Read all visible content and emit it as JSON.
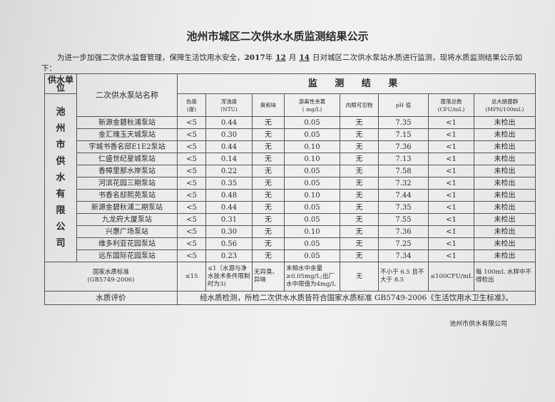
{
  "title": "池州市城区二次供水水质监测结果公示",
  "intro": {
    "before": "为进一步加强二次供水监督管理，保障生活饮用水安全，",
    "year": "2017",
    "year_unit": "年",
    "month": "12",
    "month_unit": "月",
    "day": "14",
    "after": "日对城区二次供水泵站水质进行监测，现将水质监测结果公示如下："
  },
  "table": {
    "unit_header": "供水单位",
    "name_header": "二次供水泵站名称",
    "results_header": "监 测 结 果",
    "columns": [
      "色度\n(度)",
      "浑浊度\n(NTU)",
      "臭和味",
      "游离性余氯\n( mg/L)",
      "肉眼可见物",
      "pH 值",
      "菌落总数\n(CFU/mL)",
      "总大肠菌群\n(MPN/100mL)"
    ],
    "unit": "池州市供水有限公司",
    "rows": [
      [
        "新源金碧秋浦泵站",
        "<5",
        "0.44",
        "无",
        "0.05",
        "无",
        "7.35",
        "<1",
        "未检出"
      ],
      [
        "金汇瑰玉天城泵站",
        "<5",
        "0.30",
        "无",
        "0.05",
        "无",
        "7.15",
        "<1",
        "未检出"
      ],
      [
        "宇城书香名邸E1E2泵站",
        "<5",
        "0.44",
        "无",
        "0.10",
        "无",
        "7.36",
        "<1",
        "未检出"
      ],
      [
        "仁盛世纪星城泵站",
        "<5",
        "0.14",
        "无",
        "0.10",
        "无",
        "7.13",
        "<1",
        "未检出"
      ],
      [
        "香樟里那水岸泵站",
        "<5",
        "0.22",
        "无",
        "0.05",
        "无",
        "7.58",
        "<1",
        "未检出"
      ],
      [
        "河滨花园三期泵站",
        "<5",
        "0.35",
        "无",
        "0.05",
        "无",
        "7.32",
        "<1",
        "未检出"
      ],
      [
        "书香名邸熙苑泵站",
        "<5",
        "0.48",
        "无",
        "0.10",
        "无",
        "7.44",
        "<1",
        "未检出"
      ],
      [
        "新源金碧秋浦二期泵站",
        "<5",
        "0.44",
        "无",
        "0.05",
        "无",
        "7.35",
        "<1",
        "未检出"
      ],
      [
        "九龙府大厦泵站",
        "<5",
        "0.31",
        "无",
        "0.05",
        "无",
        "7.55",
        "<1",
        "未检出"
      ],
      [
        "兴惠广场泵站",
        "<5",
        "0.30",
        "无",
        "0.10",
        "无",
        "7.36",
        "<1",
        "未检出"
      ],
      [
        "维多利亚花园泵站",
        "<5",
        "0.56",
        "无",
        "0.05",
        "无",
        "7.25",
        "<1",
        "未检出"
      ],
      [
        "远东国际花园泵站",
        "<5",
        "0.23",
        "无",
        "0.05",
        "无",
        "7.34",
        "<1",
        "未检出"
      ]
    ],
    "standard": {
      "label": "国家水质标准\n(GB5749-2006)",
      "values": [
        "≤15",
        "≤1（水源与净水技术条件限制时为3)",
        "无异臭、异味",
        "末梢水中余量≥0.05mg/L;出厂水中限值为4mg/L",
        "无",
        "不小于 6.5 且不大于 8.5",
        "≤100CFU/mL",
        "每 100mL 水样中不得检出"
      ]
    },
    "evaluation": {
      "label": "水质评价",
      "text": "经水质检测，所检二次供水水质皆符合国家水质标准 GB5749-2006《生活饮用水卫生标准》。"
    }
  },
  "company": "池州市供水有限公司"
}
